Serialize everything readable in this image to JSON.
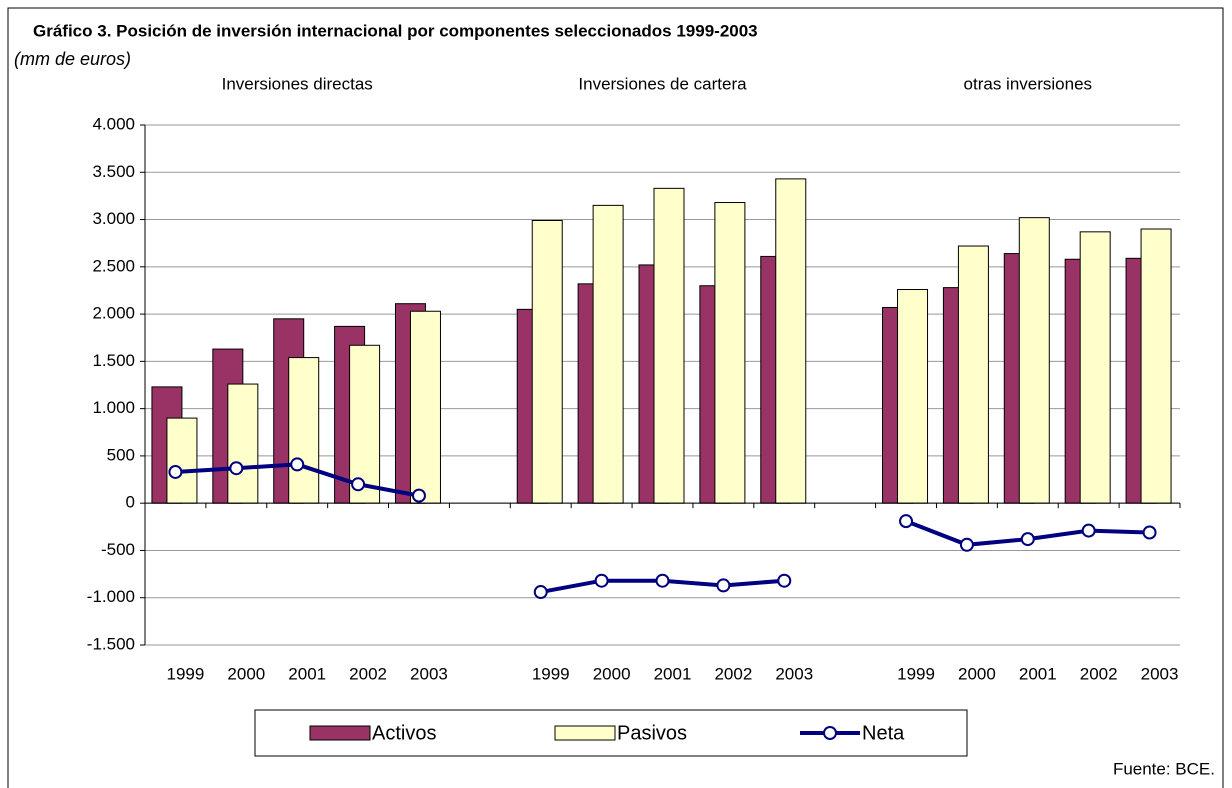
{
  "chart_data": {
    "type": "bar",
    "title": "Gráfico 3. Posición de inversión internacional por componentes seleccionados 1999-2003",
    "subtitle": "(mm de euros)",
    "group_labels": [
      "Inversiones directas",
      "Inversiones de cartera",
      "otras inversiones"
    ],
    "categories": [
      "1999",
      "2000",
      "2001",
      "2002",
      "2003",
      null,
      "1999",
      "2000",
      "2001",
      "2002",
      "2003",
      null,
      "1999",
      "2000",
      "2001",
      "2002",
      "2003"
    ],
    "series": [
      {
        "name": "Activos",
        "type": "bar",
        "color": "#993366",
        "values": [
          1230,
          1630,
          1950,
          1870,
          2110,
          null,
          2050,
          2320,
          2520,
          2300,
          2610,
          null,
          2070,
          2280,
          2640,
          2580,
          2590
        ]
      },
      {
        "name": "Pasivos",
        "type": "bar",
        "color": "#FFFFCC",
        "values": [
          900,
          1260,
          1540,
          1670,
          2030,
          null,
          2990,
          3150,
          3330,
          3180,
          3430,
          null,
          2260,
          2720,
          3020,
          2870,
          2900
        ]
      },
      {
        "name": "Neta",
        "type": "line",
        "color": "#000080",
        "values": [
          330,
          370,
          410,
          200,
          80,
          null,
          -940,
          -820,
          -820,
          -870,
          -820,
          null,
          -190,
          -440,
          -380,
          -290,
          -310
        ]
      }
    ],
    "ylim": [
      -1500,
      4000
    ],
    "yticks": [
      {
        "value": -1500,
        "label": "-1.500"
      },
      {
        "value": -1000,
        "label": "-1.000"
      },
      -500,
      0,
      500,
      {
        "value": 1000,
        "label": "1.000"
      },
      {
        "value": 1500,
        "label": "1.500"
      },
      {
        "value": 2000,
        "label": "2.000"
      },
      {
        "value": 2500,
        "label": "2.500"
      },
      {
        "value": 3000,
        "label": "3.000"
      },
      {
        "value": 3500,
        "label": "3.500"
      },
      {
        "value": 4000,
        "label": "4.000"
      }
    ],
    "grid": true,
    "legend": "bottom",
    "source": "Fuente: BCE."
  }
}
